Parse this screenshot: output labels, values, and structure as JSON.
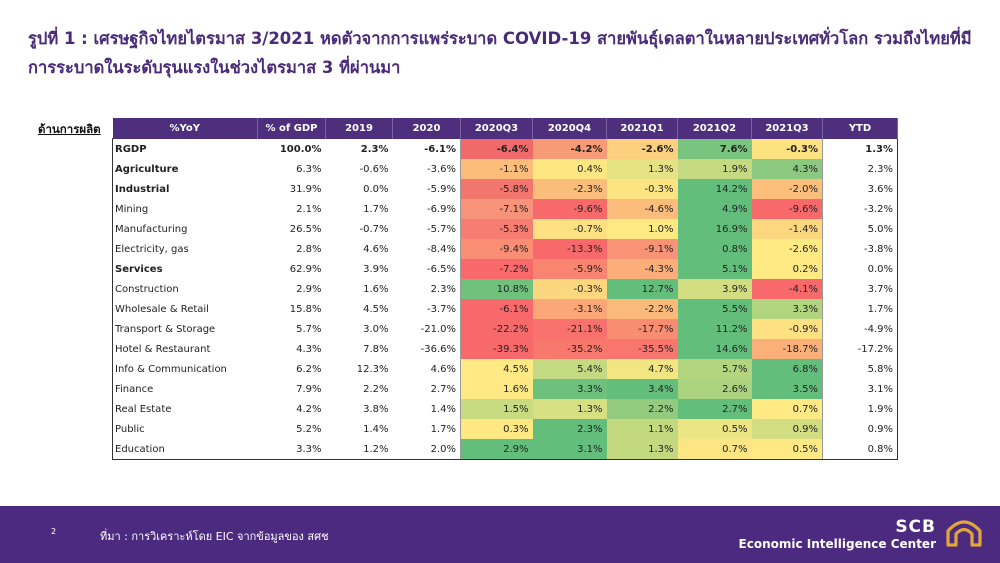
{
  "title": "รูปที่ 1 : เศรษฐกิจไทยไตรมาส 3/2021 หดตัวจากการแพร่ระบาด COVID-19 สายพันธุ์เดลตาในหลายประเทศทั่วโลก รวมถึงไทยที่มีการระบาดในระดับรุนแรงในช่วงไตรมาส 3 ที่ผ่านมา",
  "side_label": "ด้านการผลิต",
  "table": {
    "headers": [
      "%YoY",
      "% of GDP",
      "2019",
      "2020",
      "2020Q3",
      "2020Q4",
      "2021Q1",
      "2021Q2",
      "2021Q3",
      "YTD"
    ],
    "rows": [
      {
        "name": "RGDP",
        "bold": true,
        "cells": [
          "100.0%",
          "2.3%",
          "-6.1%",
          "-6.4%",
          "-4.2%",
          "-2.6%",
          "7.6%",
          "-0.3%",
          "1.3%"
        ],
        "colors": [
          "#f0696b",
          "#f79a76",
          "#fcd07f",
          "#79c57f",
          "#fde281"
        ]
      },
      {
        "name": "Agriculture",
        "bold": true,
        "cells": [
          "6.3%",
          "-0.6%",
          "-3.6%",
          "-1.1%",
          "0.4%",
          "1.3%",
          "1.9%",
          "4.3%",
          "2.3%"
        ],
        "colors": [
          "#fcbd7b",
          "#fde783",
          "#e4e283",
          "#c4d980",
          "#8ac97f"
        ]
      },
      {
        "name": "Industrial",
        "bold": true,
        "cells": [
          "31.9%",
          "0.0%",
          "-5.9%",
          "-5.8%",
          "-2.3%",
          "-0.3%",
          "14.2%",
          "-2.0%",
          "3.6%"
        ],
        "colors": [
          "#f2766e",
          "#fbbd7b",
          "#fde482",
          "#63be7b",
          "#fcbe7b"
        ]
      },
      {
        "name": "Mining",
        "bold": false,
        "cells": [
          "2.1%",
          "1.7%",
          "-6.9%",
          "-7.1%",
          "-9.6%",
          "-4.6%",
          "4.9%",
          "-9.6%",
          "-3.2%"
        ],
        "colors": [
          "#f79378",
          "#f8696b",
          "#fcbc7b",
          "#63be7b",
          "#f8696b"
        ]
      },
      {
        "name": "Manufacturing",
        "bold": false,
        "cells": [
          "26.5%",
          "-0.7%",
          "-5.7%",
          "-5.3%",
          "-0.7%",
          "1.0%",
          "16.9%",
          "-1.4%",
          "5.0%"
        ],
        "colors": [
          "#f77c71",
          "#fde082",
          "#fee983",
          "#63be7b",
          "#fcd780"
        ]
      },
      {
        "name": "Electricity, gas",
        "bold": false,
        "cells": [
          "2.8%",
          "4.6%",
          "-8.4%",
          "-9.4%",
          "-13.3%",
          "-9.1%",
          "0.8%",
          "-2.6%",
          "-3.8%"
        ],
        "colors": [
          "#f98e75",
          "#f8696b",
          "#f99375",
          "#63be7b",
          "#ffea84"
        ]
      },
      {
        "name": "Services",
        "bold": true,
        "cells": [
          "62.9%",
          "3.9%",
          "-6.5%",
          "-7.2%",
          "-5.9%",
          "-4.3%",
          "5.1%",
          "0.2%",
          "0.0%"
        ],
        "colors": [
          "#f8696b",
          "#f98570",
          "#fbae79",
          "#63be7b",
          "#ffe983"
        ]
      },
      {
        "name": "Construction",
        "bold": false,
        "cells": [
          "2.9%",
          "1.6%",
          "2.3%",
          "10.8%",
          "-0.3%",
          "12.7%",
          "3.9%",
          "-4.1%",
          "3.7%"
        ],
        "colors": [
          "#6fc17c",
          "#fdd77f",
          "#63be7b",
          "#d2dd82",
          "#f8696b"
        ]
      },
      {
        "name": "Wholesale & Retail",
        "bold": false,
        "cells": [
          "15.8%",
          "4.5%",
          "-3.7%",
          "-6.1%",
          "-3.1%",
          "-2.2%",
          "5.5%",
          "3.3%",
          "1.7%"
        ],
        "colors": [
          "#f8696b",
          "#fba777",
          "#fcba7a",
          "#63be7b",
          "#b1d47f"
        ]
      },
      {
        "name": "Transport & Storage",
        "bold": false,
        "cells": [
          "5.7%",
          "3.0%",
          "-21.0%",
          "-22.2%",
          "-21.1%",
          "-17.7%",
          "11.2%",
          "-0.9%",
          "-4.9%"
        ],
        "colors": [
          "#f8696b",
          "#f8716d",
          "#f98d72",
          "#63be7b",
          "#fee182"
        ]
      },
      {
        "name": "Hotel & Restaurant",
        "bold": false,
        "cells": [
          "4.3%",
          "7.8%",
          "-36.6%",
          "-39.3%",
          "-35.2%",
          "-35.5%",
          "14.6%",
          "-18.7%",
          "-17.2%"
        ],
        "colors": [
          "#f8696b",
          "#f8786d",
          "#f8766d",
          "#63be7b",
          "#fbb079"
        ]
      },
      {
        "name": "Info & Communication",
        "bold": false,
        "cells": [
          "6.2%",
          "12.3%",
          "4.6%",
          "4.5%",
          "5.4%",
          "4.7%",
          "5.7%",
          "6.8%",
          "5.8%"
        ],
        "colors": [
          "#ffe984",
          "#c4da82",
          "#f2e683",
          "#b4d57f",
          "#63be7b"
        ]
      },
      {
        "name": "Finance",
        "bold": false,
        "cells": [
          "7.9%",
          "2.2%",
          "2.7%",
          "1.6%",
          "3.3%",
          "3.4%",
          "2.6%",
          "3.5%",
          "3.1%"
        ],
        "colors": [
          "#ffe984",
          "#6dc17c",
          "#63be7b",
          "#abd27f",
          "#63be7b"
        ]
      },
      {
        "name": "Real Estate",
        "bold": false,
        "cells": [
          "4.2%",
          "3.8%",
          "1.4%",
          "1.5%",
          "1.3%",
          "2.2%",
          "2.7%",
          "0.7%",
          "1.9%"
        ],
        "colors": [
          "#c8db81",
          "#d6df82",
          "#93cb7e",
          "#63be7b",
          "#ffe984"
        ]
      },
      {
        "name": "Public",
        "bold": false,
        "cells": [
          "5.2%",
          "1.4%",
          "1.7%",
          "0.3%",
          "2.3%",
          "1.1%",
          "0.5%",
          "0.9%",
          "0.9%"
        ],
        "colors": [
          "#ffe984",
          "#63be7b",
          "#c3d980",
          "#ece583",
          "#d2dd82"
        ]
      },
      {
        "name": "Education",
        "bold": false,
        "cells": [
          "3.3%",
          "1.2%",
          "2.0%",
          "2.9%",
          "3.1%",
          "1.3%",
          "0.7%",
          "0.5%",
          "0.8%"
        ],
        "colors": [
          "#63be7b",
          "#63be7b",
          "#c2d980",
          "#fbe683",
          "#ffe984"
        ]
      }
    ]
  },
  "footer": {
    "page_number": "2",
    "source": "ที่มา : การวิเคราะห์โดย EIC จากข้อมูลของ สศช",
    "brand_name": "SCB",
    "brand_subtitle": "Economic Intelligence Center",
    "logo_icon": "scb-arch-logo-icon"
  },
  "colors": {
    "header_purple": "#4d2f7e",
    "footer_purple": "#4b2a80",
    "title_purple": "#4a2b7a",
    "logo_gold": "#e0a63a"
  }
}
